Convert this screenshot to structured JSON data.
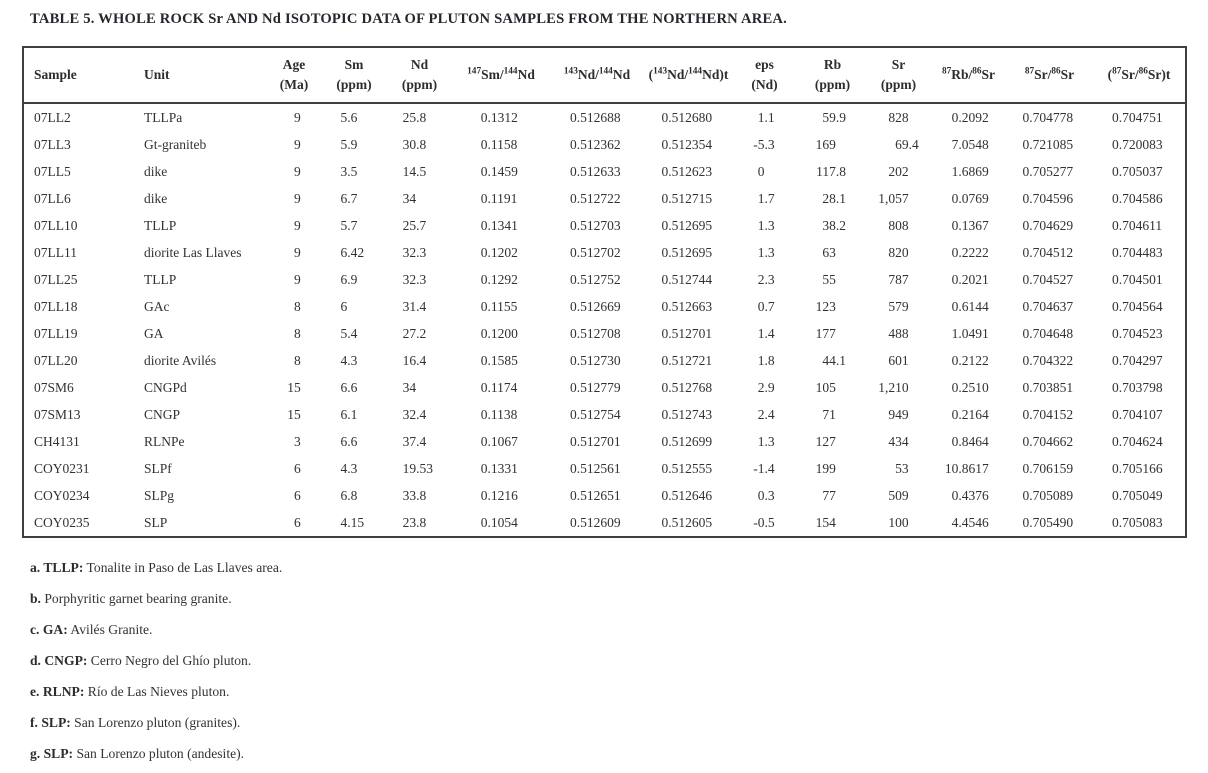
{
  "title": "TABLE 5. WHOLE ROCK Sr AND Nd ISOTOPIC DATA OF PLUTON SAMPLES FROM THE NORTHERN AREA.",
  "colors": {
    "ink": "#312e2b",
    "border": "#413f3c",
    "background": "#ffffff"
  },
  "table": {
    "columns": [
      {
        "id": "sample",
        "label": [
          {
            "t": "Sample"
          }
        ]
      },
      {
        "id": "unit",
        "label": [
          {
            "t": "Unit"
          }
        ]
      },
      {
        "id": "age-ma",
        "label": [
          {
            "t": "Age"
          },
          {
            "br": true
          },
          {
            "t": "(Ma)"
          }
        ]
      },
      {
        "id": "sm-ppm",
        "label": [
          {
            "t": "Sm"
          },
          {
            "br": true
          },
          {
            "t": "(ppm)"
          }
        ]
      },
      {
        "id": "nd-ppm",
        "label": [
          {
            "t": "Nd"
          },
          {
            "br": true
          },
          {
            "t": "(ppm)"
          }
        ]
      },
      {
        "id": "sm147-nd144",
        "label": [
          {
            "sup": "147"
          },
          {
            "t": "Sm/"
          },
          {
            "sup": "144"
          },
          {
            "t": "Nd"
          }
        ]
      },
      {
        "id": "nd143-nd144",
        "label": [
          {
            "sup": "143"
          },
          {
            "t": "Nd/"
          },
          {
            "sup": "144"
          },
          {
            "t": "Nd"
          }
        ]
      },
      {
        "id": "nd143-nd144-t",
        "label": [
          {
            "t": "("
          },
          {
            "sup": "143"
          },
          {
            "t": "Nd/"
          },
          {
            "sup": "144"
          },
          {
            "t": "Nd)t"
          }
        ]
      },
      {
        "id": "eps-nd",
        "label": [
          {
            "t": "eps"
          },
          {
            "br": true
          },
          {
            "t": "(Nd)"
          }
        ]
      },
      {
        "id": "rb-ppm",
        "label": [
          {
            "t": "Rb"
          },
          {
            "br": true
          },
          {
            "t": "(ppm)"
          }
        ]
      },
      {
        "id": "sr-ppm",
        "label": [
          {
            "t": "Sr"
          },
          {
            "br": true
          },
          {
            "t": "(ppm)"
          }
        ]
      },
      {
        "id": "rb87-sr86",
        "label": [
          {
            "sup": "87"
          },
          {
            "t": "Rb/"
          },
          {
            "sup": "86"
          },
          {
            "t": "Sr"
          }
        ]
      },
      {
        "id": "sr87-sr86",
        "label": [
          {
            "sup": "87"
          },
          {
            "t": "Sr/"
          },
          {
            "sup": "86"
          },
          {
            "t": "Sr"
          }
        ]
      },
      {
        "id": "sr87-sr86-t",
        "label": [
          {
            "t": "("
          },
          {
            "sup": "87"
          },
          {
            "t": "Sr/"
          },
          {
            "sup": "86"
          },
          {
            "t": "Sr)t"
          }
        ]
      }
    ],
    "rows": [
      [
        "07LL2",
        "TLLPa",
        "9",
        "5.6",
        "25.8",
        "0.1312",
        "0.512688",
        "0.512680",
        "1.1",
        "59.9",
        "828",
        "0.2092",
        "0.704778",
        "0.704751"
      ],
      [
        "07LL3",
        "Gt-graniteb",
        "9",
        "5.9",
        "30.8",
        "0.1158",
        "0.512362",
        "0.512354",
        "-5.3",
        "169",
        "69.4",
        "7.0548",
        "0.721085",
        "0.720083"
      ],
      [
        "07LL5",
        "dike",
        "9",
        "3.5",
        "14.5",
        "0.1459",
        "0.512633",
        "0.512623",
        "0",
        "117.8",
        "202",
        "1.6869",
        "0.705277",
        "0.705037"
      ],
      [
        "07LL6",
        "dike",
        "9",
        "6.7",
        "34",
        "0.1191",
        "0.512722",
        "0.512715",
        "1.7",
        "28.1",
        "1,057",
        "0.0769",
        "0.704596",
        "0.704586"
      ],
      [
        "07LL10",
        "TLLP",
        "9",
        "5.7",
        "25.7",
        "0.1341",
        "0.512703",
        "0.512695",
        "1.3",
        "38.2",
        "808",
        "0.1367",
        "0.704629",
        "0.704611"
      ],
      [
        "07LL11",
        "diorite Las Llaves",
        "9",
        "6.42",
        "32.3",
        "0.1202",
        "0.512702",
        "0.512695",
        "1.3",
        "63",
        "820",
        "0.2222",
        "0.704512",
        "0.704483"
      ],
      [
        "07LL25",
        "TLLP",
        "9",
        "6.9",
        "32.3",
        "0.1292",
        "0.512752",
        "0.512744",
        "2.3",
        "55",
        "787",
        "0.2021",
        "0.704527",
        "0.704501"
      ],
      [
        "07LL18",
        "GAc",
        "8",
        "6",
        "31.4",
        "0.1155",
        "0.512669",
        "0.512663",
        "0.7",
        "123",
        "579",
        "0.6144",
        "0.704637",
        "0.704564"
      ],
      [
        "07LL19",
        "GA",
        "8",
        "5.4",
        "27.2",
        "0.1200",
        "0.512708",
        "0.512701",
        "1.4",
        "177",
        "488",
        "1.0491",
        "0.704648",
        "0.704523"
      ],
      [
        "07LL20",
        "diorite Avilés",
        "8",
        "4.3",
        "16.4",
        "0.1585",
        "0.512730",
        "0.512721",
        "1.8",
        "44.1",
        "601",
        "0.2122",
        "0.704322",
        "0.704297"
      ],
      [
        "07SM6",
        "CNGPd",
        "15",
        "6.6",
        "34",
        "0.1174",
        "0.512779",
        "0.512768",
        "2.9",
        "105",
        "1,210",
        "0.2510",
        "0.703851",
        "0.703798"
      ],
      [
        "07SM13",
        "CNGP",
        "15",
        "6.1",
        "32.4",
        "0.1138",
        "0.512754",
        "0.512743",
        "2.4",
        "71",
        "949",
        "0.2164",
        "0.704152",
        "0.704107"
      ],
      [
        "CH4131",
        "RLNPe",
        "3",
        "6.6",
        "37.4",
        "0.1067",
        "0.512701",
        "0.512699",
        "1.3",
        "127",
        "434",
        "0.8464",
        "0.704662",
        "0.704624"
      ],
      [
        "COY0231",
        "SLPf",
        "6",
        "4.3",
        "19.53",
        "0.1331",
        "0.512561",
        "0.512555",
        "-1.4",
        "199",
        "53",
        "10.8617",
        "0.706159",
        "0.705166"
      ],
      [
        "COY0234",
        "SLPg",
        "6",
        "6.8",
        "33.8",
        "0.1216",
        "0.512651",
        "0.512646",
        "0.3",
        "77",
        "509",
        "0.4376",
        "0.705089",
        "0.705049"
      ],
      [
        "COY0235",
        "SLP",
        "6",
        "4.15",
        "23.8",
        "0.1054",
        "0.512609",
        "0.512605",
        "-0.5",
        "154",
        "100",
        "4.4546",
        "0.705490",
        "0.705083"
      ]
    ]
  },
  "footnotes": [
    {
      "bold": "a. TLLP:",
      "text": " Tonalite in Paso de Las Llaves area."
    },
    {
      "bold": "b.",
      "text": " Porphyritic garnet bearing granite."
    },
    {
      "bold": "c. GA:",
      "text": " Avilés Granite."
    },
    {
      "bold": "d. CNGP:",
      "text": " Cerro Negro del Ghío pluton."
    },
    {
      "bold": "e. RLNP:",
      "text": " Río de Las Nieves pluton."
    },
    {
      "bold": "f. SLP:",
      "text": " San Lorenzo pluton (granites)."
    },
    {
      "bold": "g. SLP:",
      "text": " San Lorenzo pluton (andesite)."
    }
  ]
}
